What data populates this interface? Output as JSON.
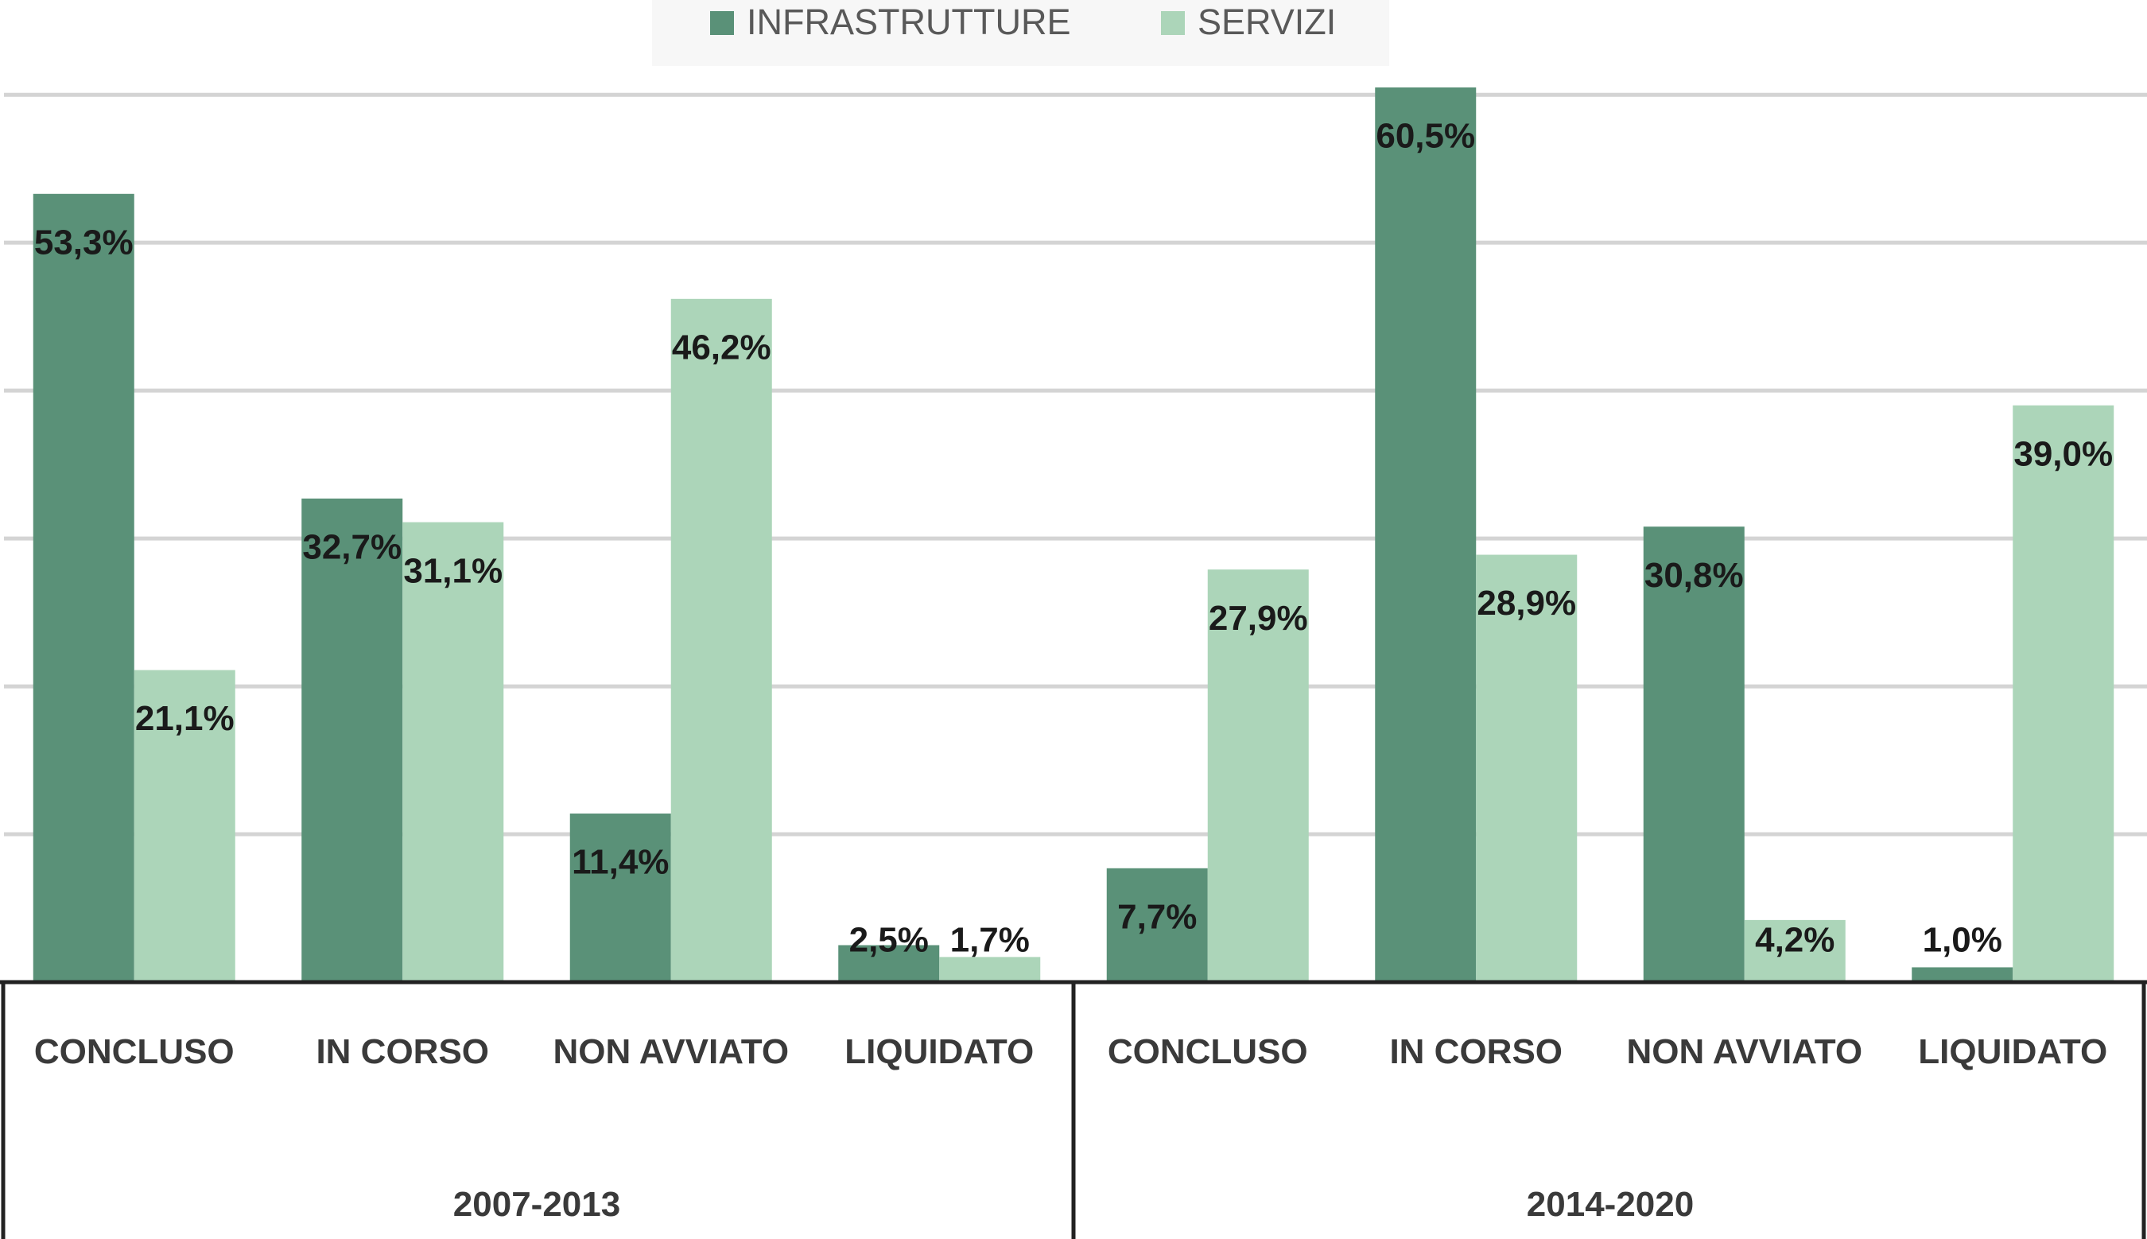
{
  "chart_data": {
    "type": "bar",
    "legend": "top",
    "categories": [
      "CONCLUSO",
      "IN CORSO",
      "NON AVVIATO",
      "LIQUIDATO",
      "CONCLUSO",
      "IN CORSO",
      "NON AVVIATO",
      "LIQUIDATO"
    ],
    "group_labels": [
      "2007-2013",
      "2014-2020"
    ],
    "series": [
      {
        "name": "INFRASTRUTTURE",
        "color": "#5a9178",
        "values": [
          53.3,
          32.7,
          11.4,
          2.5,
          7.7,
          60.5,
          30.8,
          1.0
        ],
        "value_labels": [
          "53,3%",
          "32,7%",
          "11,4%",
          "2,5%",
          "7,7%",
          "60,5%",
          "30,8%",
          "1,0%"
        ]
      },
      {
        "name": "SERVIZI",
        "color": "#acd5b9",
        "values": [
          21.1,
          31.1,
          46.2,
          1.7,
          27.9,
          28.9,
          4.2,
          39.0
        ],
        "value_labels": [
          "21,1%",
          "31,1%",
          "46,2%",
          "1,7%",
          "27,9%",
          "28,9%",
          "4,2%",
          "39,0%"
        ]
      }
    ],
    "ylim": [
      0,
      62
    ],
    "yticks": [
      10,
      20,
      30,
      40,
      50,
      60
    ],
    "grid": true
  }
}
